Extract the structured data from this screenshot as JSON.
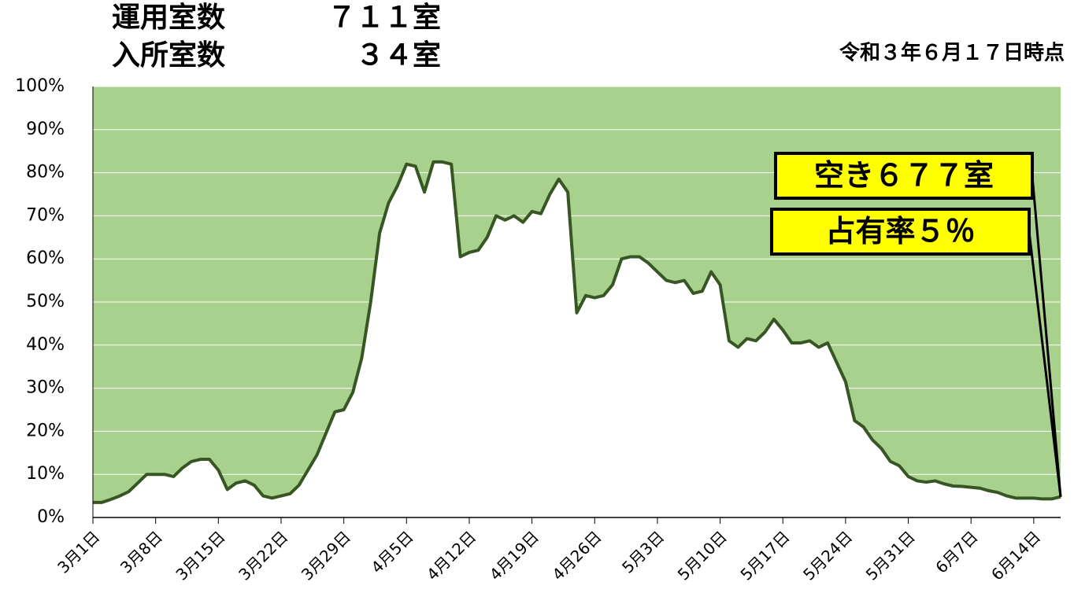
{
  "chart_data": {
    "type": "area",
    "header": {
      "label1": "運用室数",
      "value1": "７１１室",
      "label2": "入所室数",
      "value2": "３４室"
    },
    "subtitle": "令和３年６月１７日時点",
    "annotations": [
      "空き６７７室",
      "占有率５％"
    ],
    "categories": [
      "3月1日",
      null,
      null,
      null,
      null,
      null,
      null,
      "3月8日",
      null,
      null,
      null,
      null,
      null,
      null,
      "3月15日",
      null,
      null,
      null,
      null,
      null,
      null,
      "3月22日",
      null,
      null,
      null,
      null,
      null,
      null,
      "3月29日",
      null,
      null,
      null,
      null,
      null,
      null,
      "4月5日",
      null,
      null,
      null,
      null,
      null,
      null,
      "4月12日",
      null,
      null,
      null,
      null,
      null,
      null,
      "4月19日",
      null,
      null,
      null,
      null,
      null,
      null,
      "4月26日",
      null,
      null,
      null,
      null,
      null,
      null,
      "5月3日",
      null,
      null,
      null,
      null,
      null,
      null,
      "5月10日",
      null,
      null,
      null,
      null,
      null,
      null,
      "5月17日",
      null,
      null,
      null,
      null,
      null,
      null,
      "5月24日",
      null,
      null,
      null,
      null,
      null,
      null,
      "5月31日",
      null,
      null,
      null,
      null,
      null,
      null,
      "6月7日",
      null,
      null,
      null,
      null,
      null,
      null,
      "6月14日",
      null,
      null,
      null
    ],
    "values": [
      3.5,
      3.5,
      4.2,
      5,
      6,
      8,
      10,
      10,
      10,
      9.5,
      11.5,
      13,
      13.5,
      13.5,
      11,
      6.5,
      8,
      8.5,
      7.5,
      5,
      4.5,
      5,
      5.5,
      7.5,
      11,
      14.5,
      19.5,
      24.5,
      25,
      29,
      37,
      50,
      66,
      73,
      77,
      82,
      81.5,
      75.5,
      82.5,
      82.5,
      82,
      60.5,
      61.5,
      62,
      65,
      70,
      69,
      70,
      68.5,
      71,
      70.5,
      75,
      78.5,
      75.5,
      47.5,
      51.5,
      51,
      51.5,
      54,
      60,
      60.5,
      60.5,
      59,
      57,
      55,
      54.5,
      55,
      52,
      52.5,
      57,
      54,
      41,
      39.5,
      41.5,
      41,
      43,
      46,
      43.5,
      40.5,
      40.5,
      41,
      39.5,
      40.5,
      36,
      31.5,
      22.5,
      21,
      18,
      16,
      13,
      12,
      9.5,
      8.5,
      8.2,
      8.5,
      7.8,
      7.3,
      7.2,
      7,
      6.8,
      6.2,
      5.8,
      5,
      4.5,
      4.5,
      4.5,
      4.3,
      4.3,
      4.8
    ],
    "color": "#375623",
    "background_color": "#a9d18e",
    "ylim": [
      0,
      100
    ],
    "yticks": [
      {
        "value": 0,
        "label": "0%"
      },
      {
        "value": 10,
        "label": "10%"
      },
      {
        "value": 20,
        "label": "20%"
      },
      {
        "value": 30,
        "label": "30%"
      },
      {
        "value": 40,
        "label": "40%"
      },
      {
        "value": 50,
        "label": "50%"
      },
      {
        "value": 60,
        "label": "60%"
      },
      {
        "value": 70,
        "label": "70%"
      },
      {
        "value": 80,
        "label": "80%"
      },
      {
        "value": 90,
        "label": "90%"
      },
      {
        "value": 100,
        "label": "100%"
      }
    ],
    "grid": true
  }
}
